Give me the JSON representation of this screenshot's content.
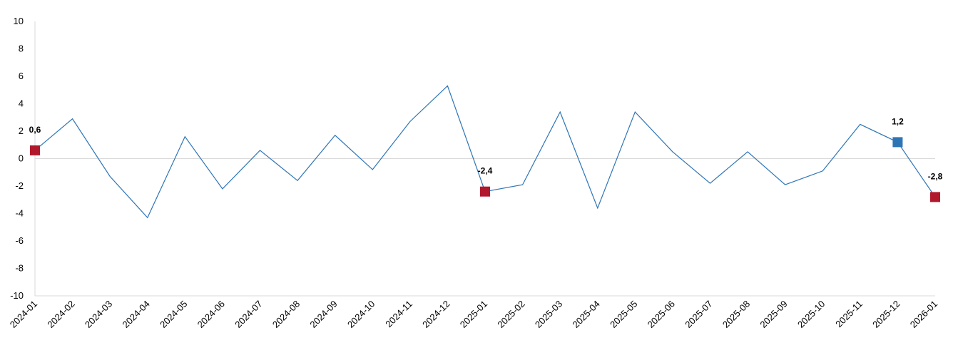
{
  "chart_data": {
    "type": "line",
    "title": "",
    "xlabel": "",
    "ylabel": "",
    "ylim": [
      -10,
      10
    ],
    "yticks": [
      "10",
      "8",
      "6",
      "4",
      "2",
      "0",
      "-2",
      "-4",
      "-6",
      "-8",
      "-10"
    ],
    "grid": false,
    "legend": "none",
    "categories": [
      "2024-01",
      "2024-02",
      "2024-03",
      "2024-04",
      "2024-05",
      "2024-06",
      "2024-07",
      "2024-08",
      "2024-09",
      "2024-10",
      "2024-11",
      "2024-12",
      "2025-01",
      "2025-02",
      "2025-03",
      "2025-04",
      "2025-05",
      "2025-06",
      "2025-07",
      "2025-08",
      "2025-09",
      "2025-10",
      "2025-11",
      "2025-12",
      "2026-01"
    ],
    "series": [
      {
        "values": [
          0.6,
          2.9,
          -1.3,
          -4.3,
          1.6,
          -2.2,
          0.6,
          -1.6,
          1.7,
          -0.8,
          2.7,
          5.3,
          -2.4,
          -1.9,
          3.4,
          -3.6,
          3.4,
          0.5,
          -1.8,
          0.5,
          -1.9,
          -0.9,
          2.5,
          1.2,
          -2.8
        ],
        "color": "#2e75b6"
      }
    ],
    "highlights": [
      {
        "index": 0,
        "label": "0,6",
        "color": "#b2182b"
      },
      {
        "index": 12,
        "label": "-2,4",
        "color": "#b2182b"
      },
      {
        "index": 23,
        "label": "1,2",
        "color": "#2e75b6"
      },
      {
        "index": 24,
        "label": "-2,8",
        "color": "#b2182b"
      }
    ]
  }
}
